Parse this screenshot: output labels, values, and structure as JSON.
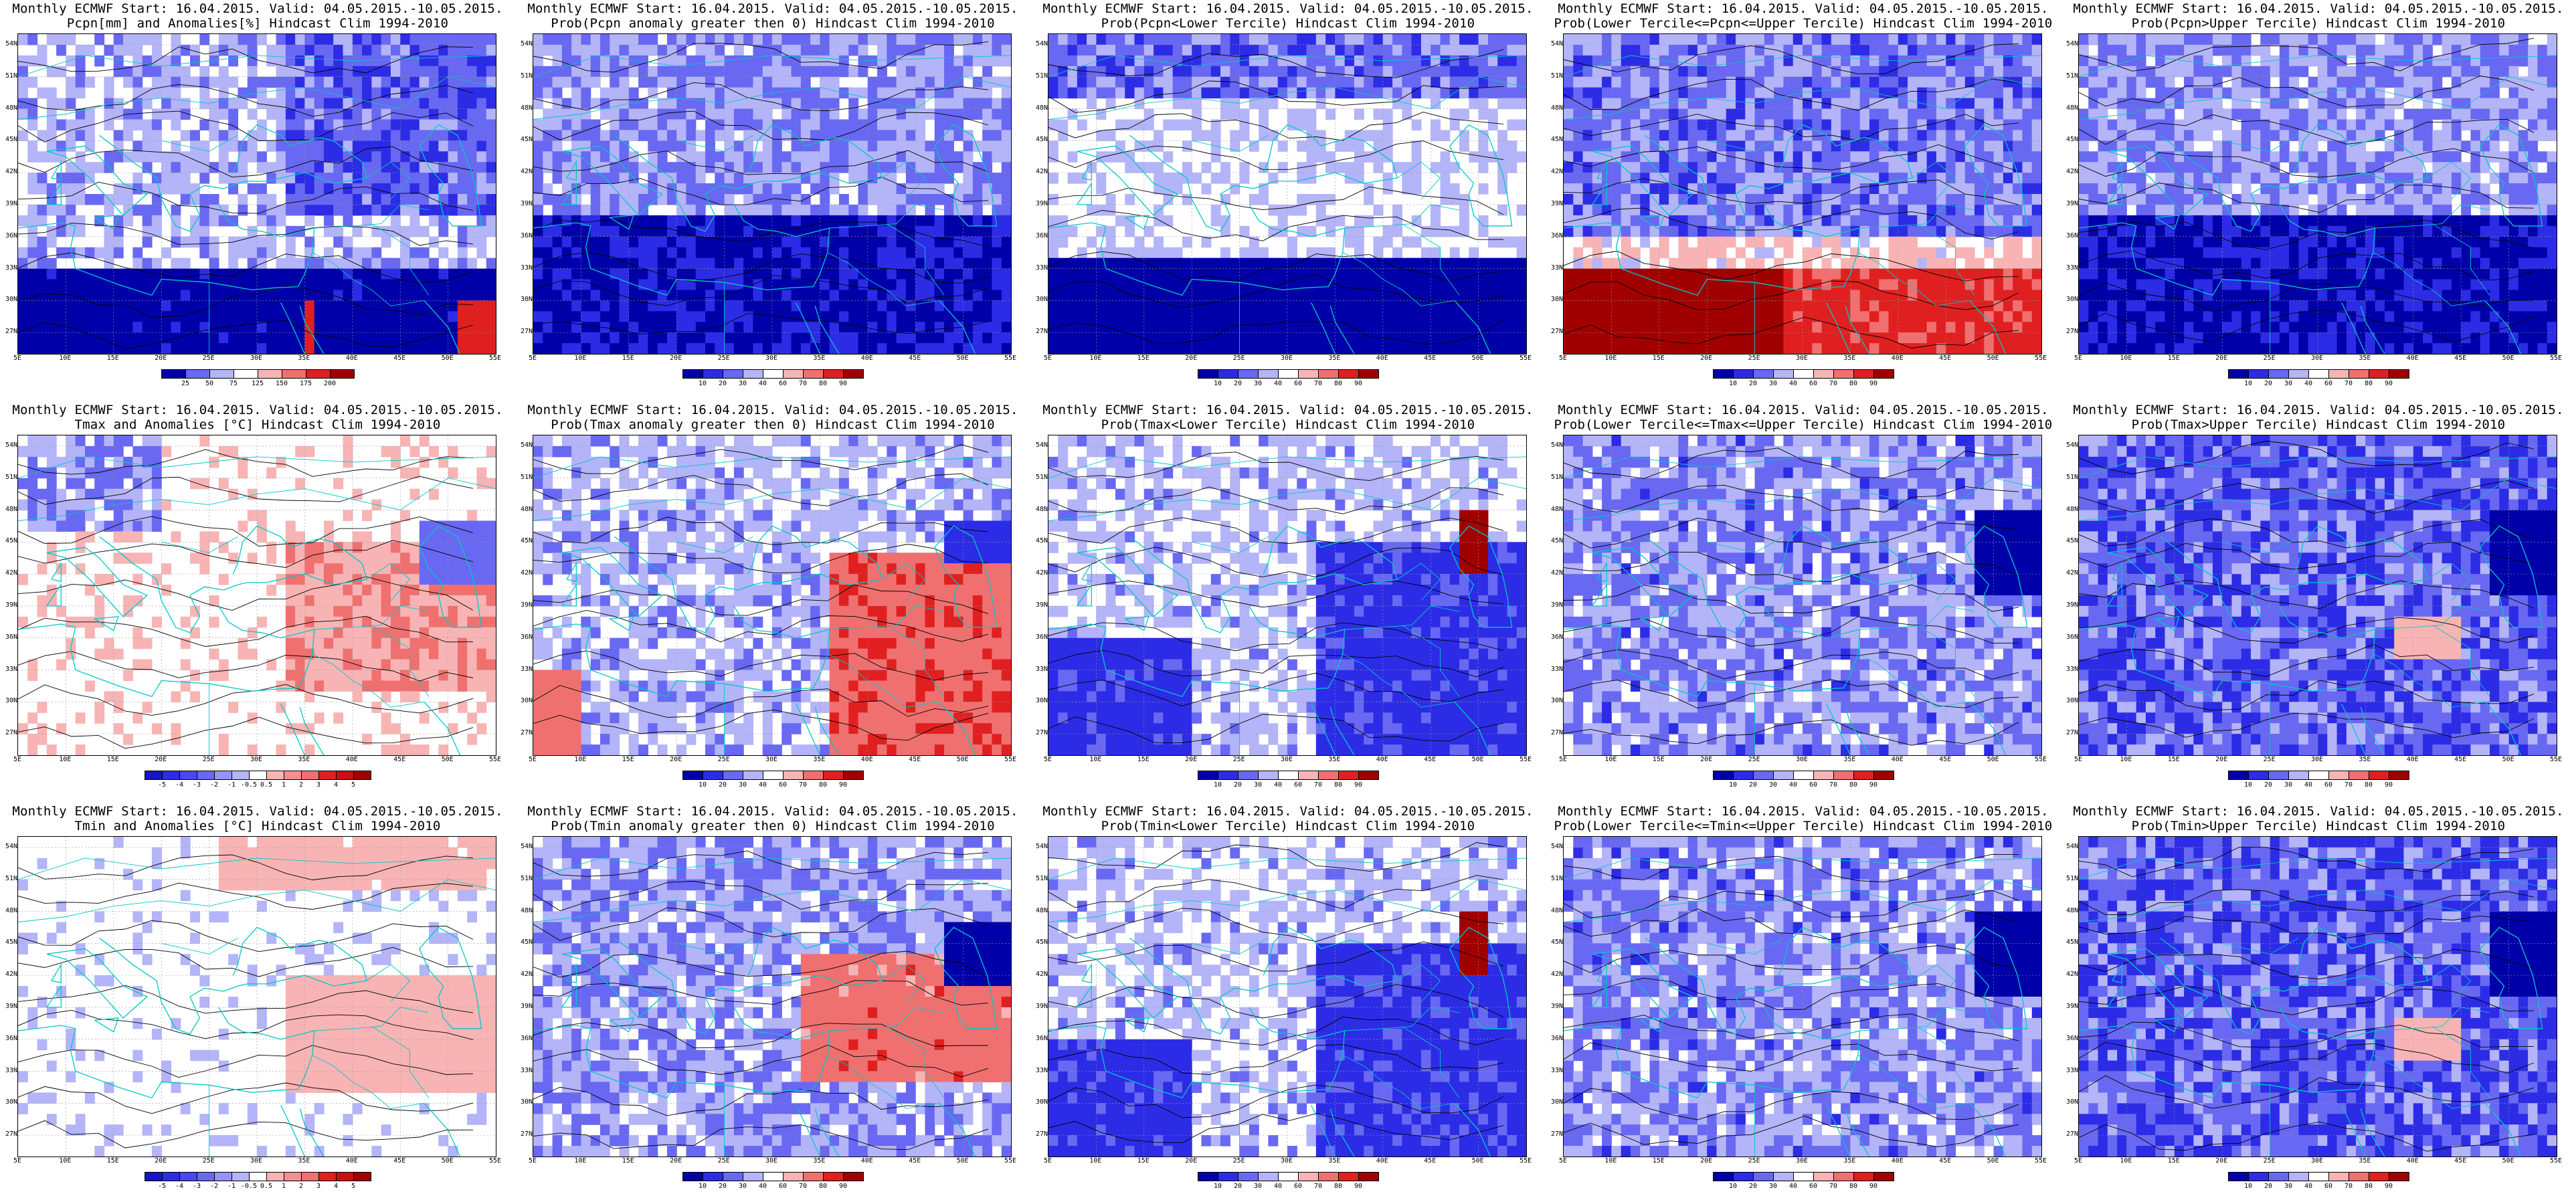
{
  "header_line1": "Monthly ECMWF Start: 16.04.2015. Valid: 04.05.2015.-10.05.2015.",
  "lat_labels": [
    "54N",
    "51N",
    "48N",
    "45N",
    "42N",
    "39N",
    "36N",
    "33N",
    "30N",
    "27N"
  ],
  "lon_labels": [
    "5E",
    "10E",
    "15E",
    "20E",
    "25E",
    "30E",
    "35E",
    "40E",
    "45E",
    "50E",
    "55E"
  ],
  "colors": {
    "deep_blue": "#0000a8",
    "blue": "#2c2ce6",
    "mid_blue": "#6868f2",
    "light_blue": "#b4b4f8",
    "white": "#ffffff",
    "light_red": "#f8b4b4",
    "mid_red": "#f07070",
    "red": "#e02020",
    "dark_red": "#a00000",
    "coast": "#00c8c8",
    "contour": "#000000"
  },
  "colorbars": {
    "pcpn": [
      "25",
      "50",
      "75",
      "125",
      "150",
      "175",
      "200"
    ],
    "prob": [
      "10",
      "20",
      "30",
      "40",
      "60",
      "70",
      "80",
      "90"
    ],
    "temp": [
      "-5",
      "-4",
      "-3",
      "-2",
      "-1",
      "-0.5",
      "0.5",
      "1",
      "2",
      "3",
      "4",
      "5"
    ]
  },
  "panels": [
    {
      "title": "Pcpn[mm] and Anomalies[%] Hindcast Clim 1994-2010",
      "scale": "pcpn",
      "pattern": "pcpn_anom"
    },
    {
      "title": "Prob(Pcpn anomaly greater then 0) Hindcast Clim 1994-2010",
      "scale": "prob",
      "pattern": "south_blue"
    },
    {
      "title": "Prob(Pcpn<Lower Tercile) Hindcast Clim 1994-2010",
      "scale": "prob",
      "pattern": "south_deep"
    },
    {
      "title": "Prob(Lower Tercile<=Pcpn<=Upper Tercile) Hindcast Clim 1994-2010",
      "scale": "prob",
      "pattern": "south_red"
    },
    {
      "title": "Prob(Pcpn>Upper Tercile) Hindcast Clim 1994-2010",
      "scale": "prob",
      "pattern": "south_blue"
    },
    {
      "title": "Tmax and Anomalies [°C] Hindcast Clim 1994-2010",
      "scale": "temp",
      "pattern": "east_red"
    },
    {
      "title": "Prob(Tmax anomaly greater then 0) Hindcast Clim 1994-2010",
      "scale": "prob",
      "pattern": "east_red_strong"
    },
    {
      "title": "Prob(Tmax<Lower Tercile) Hindcast Clim 1994-2010",
      "scale": "prob",
      "pattern": "east_blue_caspian_red"
    },
    {
      "title": "Prob(Lower Tercile<=Tmax<=Upper Tercile) Hindcast Clim 1994-2010",
      "scale": "prob",
      "pattern": "patchy_blue"
    },
    {
      "title": "Prob(Tmax>Upper Tercile) Hindcast Clim 1994-2010",
      "scale": "prob",
      "pattern": "blue_dense"
    },
    {
      "title": "Tmin and Anomalies [°C] Hindcast Clim 1994-2010",
      "scale": "temp",
      "pattern": "light_mixed"
    },
    {
      "title": "Prob(Tmin anomaly greater then 0) Hindcast Clim 1994-2010",
      "scale": "prob",
      "pattern": "mixed_red_east"
    },
    {
      "title": "Prob(Tmin<Lower Tercile) Hindcast Clim 1994-2010",
      "scale": "prob",
      "pattern": "east_blue_caspian_red"
    },
    {
      "title": "Prob(Lower Tercile<=Tmin<=Upper Tercile) Hindcast Clim 1994-2010",
      "scale": "prob",
      "pattern": "patchy_blue"
    },
    {
      "title": "Prob(Tmin>Upper Tercile) Hindcast Clim 1994-2010",
      "scale": "prob",
      "pattern": "blue_dense"
    }
  ]
}
